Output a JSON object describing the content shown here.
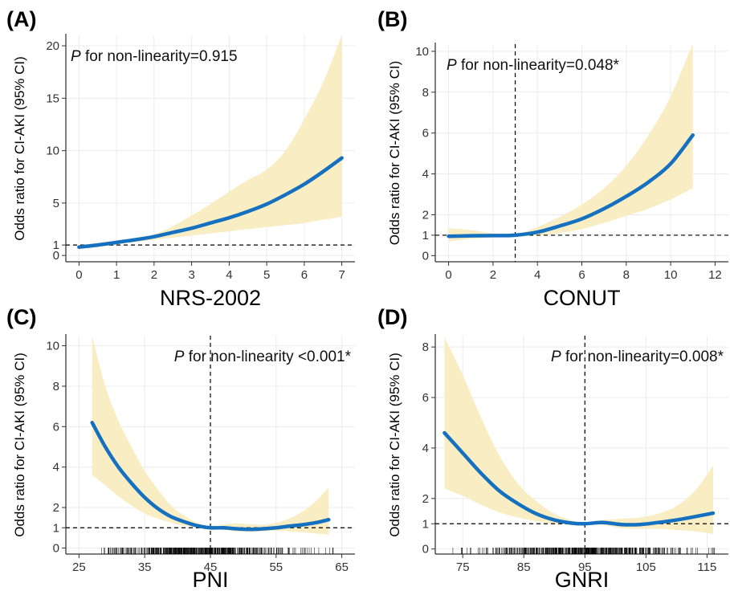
{
  "chart_data": [
    {
      "panel": "(A)",
      "type": "line",
      "xlabel": "NRS-2002",
      "ylabel": "Odds ratio for CI-AKI (95% CI)",
      "annotation": {
        "p": "P",
        "text": " for non-linearity=0.915"
      },
      "annotation_anchor": "start",
      "xlim": [
        -0.35,
        7.35
      ],
      "ylim": [
        -0.6,
        21
      ],
      "x_ticks": [
        0,
        1,
        2,
        3,
        4,
        5,
        6,
        7
      ],
      "y_ticks": [
        0,
        1,
        5,
        10,
        15,
        20
      ],
      "ref_x": null,
      "ref_y": 1,
      "rug": false,
      "series": {
        "x": [
          0,
          0.5,
          1,
          1.5,
          2,
          2.5,
          3,
          3.5,
          4,
          4.5,
          5,
          5.5,
          6,
          6.5,
          7
        ],
        "or": [
          0.8,
          1.0,
          1.25,
          1.5,
          1.8,
          2.2,
          2.6,
          3.1,
          3.6,
          4.2,
          4.9,
          5.8,
          6.8,
          8.0,
          9.3
        ],
        "lower": [
          0.6,
          0.8,
          1.05,
          1.3,
          1.5,
          1.7,
          1.9,
          2.1,
          2.3,
          2.5,
          2.7,
          2.9,
          3.1,
          3.4,
          3.7
        ],
        "upper": [
          1.0,
          1.2,
          1.4,
          1.6,
          2.0,
          2.8,
          3.8,
          4.9,
          6.1,
          7.2,
          8.2,
          10.0,
          13.0,
          16.5,
          21.0
        ]
      }
    },
    {
      "panel": "(B)",
      "type": "line",
      "xlabel": "CONUT",
      "ylabel": "Odds ratio for CI-AKI (95% CI)",
      "annotation": {
        "p": "P",
        "text": " for non-linearity=0.048*"
      },
      "annotation_anchor": "start",
      "xlim": [
        -0.6,
        12.6
      ],
      "ylim": [
        -0.3,
        10.35
      ],
      "x_ticks": [
        0,
        2,
        4,
        6,
        8,
        10,
        12
      ],
      "y_ticks": [
        0,
        1,
        2,
        4,
        6,
        8,
        10
      ],
      "ref_x": 3,
      "ref_y": 1,
      "rug": false,
      "series": {
        "x": [
          0,
          1,
          2,
          3,
          4,
          5,
          6,
          7,
          8,
          9,
          10,
          11
        ],
        "or": [
          0.95,
          0.97,
          0.98,
          1.0,
          1.15,
          1.45,
          1.8,
          2.3,
          2.9,
          3.6,
          4.5,
          5.9
        ],
        "lower": [
          0.7,
          0.82,
          0.9,
          0.96,
          0.98,
          1.1,
          1.3,
          1.6,
          1.95,
          2.3,
          2.75,
          3.3
        ],
        "upper": [
          1.35,
          1.25,
          1.1,
          1.05,
          1.4,
          1.9,
          2.5,
          3.3,
          4.4,
          5.9,
          7.8,
          10.4
        ]
      }
    },
    {
      "panel": "(C)",
      "type": "line",
      "xlabel": "PNI",
      "ylabel": "Odds ratio for CI-AKI (95% CI)",
      "annotation": {
        "p": "P",
        "text": " for non-linearity <0.001*"
      },
      "annotation_anchor": "end",
      "xlim": [
        23,
        67
      ],
      "ylim": [
        -0.3,
        10.5
      ],
      "x_ticks": [
        25,
        35,
        45,
        55,
        65
      ],
      "y_ticks": [
        0,
        1,
        2,
        4,
        6,
        8,
        10
      ],
      "ref_x": 45,
      "ref_y": 1,
      "rug": true,
      "rug_range": [
        25,
        64
      ],
      "series": {
        "x": [
          27,
          29,
          31,
          33,
          35,
          37,
          39,
          41,
          43,
          45,
          47,
          49,
          51,
          53,
          55,
          57,
          59,
          61,
          63
        ],
        "or": [
          6.2,
          5.0,
          4.0,
          3.2,
          2.5,
          1.95,
          1.55,
          1.3,
          1.1,
          1.0,
          1.0,
          0.95,
          0.92,
          0.95,
          1.0,
          1.08,
          1.15,
          1.25,
          1.4
        ],
        "lower": [
          3.6,
          3.1,
          2.55,
          2.1,
          1.7,
          1.45,
          1.25,
          1.1,
          1.02,
          0.98,
          0.9,
          0.82,
          0.8,
          0.82,
          0.85,
          0.82,
          0.78,
          0.72,
          0.65
        ],
        "upper": [
          10.5,
          8.0,
          6.3,
          5.0,
          3.8,
          2.9,
          2.1,
          1.6,
          1.25,
          1.03,
          1.15,
          1.22,
          1.18,
          1.15,
          1.25,
          1.45,
          1.8,
          2.3,
          3.0
        ]
      }
    },
    {
      "panel": "(D)",
      "type": "line",
      "xlabel": "GNRI",
      "ylabel": "Odds ratio for CI-AKI (95% CI)",
      "annotation": {
        "p": "P",
        "text": " for non-linearity=0.008*"
      },
      "annotation_anchor": "end",
      "xlim": [
        70.5,
        118.5
      ],
      "ylim": [
        -0.2,
        8.45
      ],
      "x_ticks": [
        75,
        85,
        95,
        105,
        115
      ],
      "y_ticks": [
        0,
        1,
        2,
        4,
        6,
        8
      ],
      "ref_x": 95,
      "ref_y": 1,
      "rug": true,
      "rug_range": [
        72,
        117
      ],
      "series": {
        "x": [
          72,
          75,
          78,
          81,
          84,
          87,
          90,
          93,
          95,
          98,
          101,
          104,
          107,
          110,
          113,
          116
        ],
        "or": [
          4.6,
          3.8,
          3.0,
          2.3,
          1.8,
          1.4,
          1.15,
          1.02,
          1.0,
          1.05,
          0.97,
          0.97,
          1.05,
          1.15,
          1.28,
          1.42
        ],
        "lower": [
          2.4,
          2.1,
          1.75,
          1.45,
          1.25,
          1.1,
          1.0,
          0.95,
          0.98,
          0.95,
          0.82,
          0.8,
          0.8,
          0.75,
          0.7,
          0.6
        ],
        "upper": [
          8.4,
          6.9,
          5.2,
          3.7,
          2.6,
          1.9,
          1.4,
          1.12,
          1.02,
          1.15,
          1.2,
          1.25,
          1.4,
          1.7,
          2.3,
          3.3
        ]
      }
    }
  ]
}
